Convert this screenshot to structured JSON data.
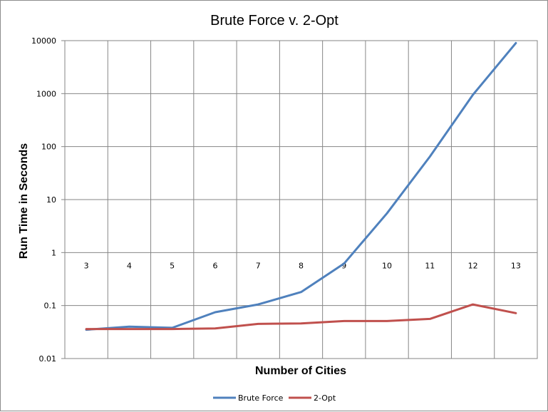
{
  "chart_data": {
    "type": "line",
    "title": "Brute Force v. 2-Opt",
    "xlabel": "Number of Cities",
    "ylabel": "Run Time in Seconds",
    "y_scale": "log",
    "ylim": [
      0.01,
      10000
    ],
    "y_ticks": [
      "10000",
      "1000",
      "100",
      "10",
      "1",
      "0.1",
      "0.01"
    ],
    "categories": [
      "3",
      "4",
      "5",
      "6",
      "7",
      "8",
      "9",
      "10",
      "11",
      "12",
      "13"
    ],
    "grid": true,
    "legend_position": "bottom",
    "series": [
      {
        "name": "Brute Force",
        "color": "#4f81bd",
        "values": [
          0.035,
          0.04,
          0.038,
          0.075,
          0.105,
          0.18,
          0.62,
          5.5,
          65,
          950,
          9000
        ]
      },
      {
        "name": "2-Opt",
        "color": "#c0504d",
        "values": [
          0.036,
          0.036,
          0.036,
          0.037,
          0.045,
          0.046,
          0.051,
          0.051,
          0.056,
          0.105,
          0.072
        ]
      }
    ]
  }
}
